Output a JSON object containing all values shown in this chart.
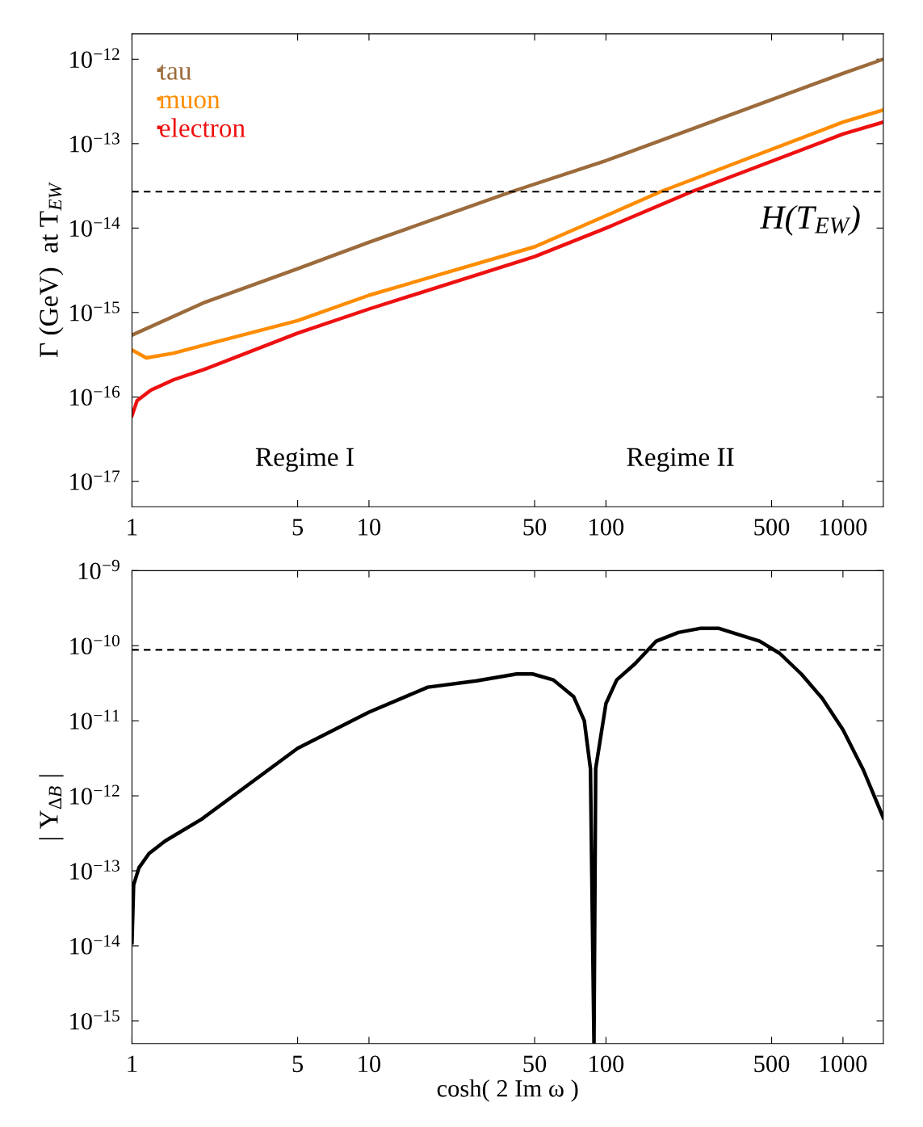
{
  "chart_data": [
    {
      "type": "line",
      "ylabel": "Γ (GeV)  at T$_{EW}$",
      "log": "xy",
      "grid": false,
      "legend": "top left",
      "tick_labels": true,
      "xlim": [
        1,
        1480
      ],
      "xticks": [
        1,
        5,
        10,
        50,
        100,
        500,
        1000
      ],
      "ylim": [
        5e-18,
        2e-12
      ],
      "yticks": [
        {
          "value": 1e-12,
          "label": "10$^{−12}$"
        },
        {
          "value": 1e-13,
          "label": "10$^{−13}$"
        },
        {
          "value": 1e-14,
          "label": "10$^{−14}$"
        },
        {
          "value": 1e-15,
          "label": "10$^{−15}$"
        },
        {
          "value": 1e-16,
          "label": "10$^{−16}$"
        },
        {
          "value": 1e-17,
          "label": "10$^{−17}$"
        }
      ],
      "series": [
        {
          "name": "tau",
          "color": "#9c6b3c",
          "x": [
            1,
            2,
            5,
            10,
            40,
            100,
            1000,
            1480
          ],
          "values": [
            5.4e-16,
            1.3e-15,
            3.3e-15,
            6.8e-15,
            2.7e-14,
            6.3e-14,
            6.8e-13,
            1e-12
          ]
        },
        {
          "name": "muon",
          "color": "#ff8c00",
          "x": [
            1,
            1.15,
            1.5,
            2,
            5,
            10,
            50,
            100,
            170,
            1000,
            1480
          ],
          "values": [
            3.6e-16,
            2.9e-16,
            3.3e-16,
            4.1e-16,
            8e-16,
            1.6e-15,
            6e-15,
            1.4e-14,
            2.7e-14,
            1.8e-13,
            2.5e-13
          ]
        },
        {
          "name": "electron",
          "color": "#ee1111",
          "x": [
            1,
            1.05,
            1.2,
            1.5,
            2,
            5,
            10,
            50,
            100,
            230,
            1000,
            1480
          ],
          "values": [
            6e-17,
            9e-17,
            1.2e-16,
            1.6e-16,
            2.1e-16,
            5.7e-16,
            1.1e-15,
            4.6e-15,
            1e-14,
            2.7e-14,
            1.3e-13,
            1.8e-13
          ]
        }
      ],
      "ref_lines": [
        {
          "axis": "y",
          "value": 2.7e-14,
          "label": "H(T$_{EW}$)",
          "color": "#000000",
          "line_style": "dashed"
        }
      ],
      "annotations": [
        "Regime I",
        "Regime II"
      ]
    },
    {
      "type": "line",
      "xlabel": "cosh( 2 Im ω )",
      "ylabel": "| Y$_{ΔB}$ |",
      "log": "xy",
      "grid": false,
      "legend": false,
      "xlim": [
        1,
        1480
      ],
      "xticks": [
        1,
        5,
        10,
        50,
        100,
        500,
        1000
      ],
      "ylim": [
        5e-16,
        1e-09
      ],
      "yticks": [
        {
          "value": 1e-09,
          "label": "10$^{−9}$"
        },
        {
          "value": 1e-10,
          "label": "10$^{−10}$"
        },
        {
          "value": 1e-11,
          "label": "10$^{−11}$"
        },
        {
          "value": 1e-12,
          "label": "10$^{−12}$"
        },
        {
          "value": 1e-13,
          "label": "10$^{−13}$"
        },
        {
          "value": 1e-14,
          "label": "10$^{−14}$"
        },
        {
          "value": 1e-15,
          "label": "10$^{−15}$"
        }
      ],
      "series": [
        {
          "color": "#000000",
          "x": [
            1,
            1.016,
            1.07,
            1.18,
            1.38,
            1.97,
            5,
            10,
            17.7,
            28.4,
            42,
            49,
            60,
            73,
            81,
            86,
            89,
            90.5,
            100,
            111,
            133,
            163,
            202,
            249,
            300,
            364,
            445,
            541,
            667,
            817,
            1000,
            1220,
            1480
          ],
          "values": [
            1.1e-14,
            6.5e-14,
            1.1e-13,
            1.7e-13,
            2.5e-13,
            4.9e-13,
            4.3e-12,
            1.3e-11,
            2.8e-11,
            3.4e-11,
            4.2e-11,
            4.2e-11,
            3.5e-11,
            2.1e-11,
            1e-11,
            2.3e-12,
            5e-16,
            2.3e-12,
            1.7e-11,
            3.5e-11,
            5.8e-11,
            1.15e-10,
            1.5e-10,
            1.7e-10,
            1.7e-10,
            1.4e-10,
            1.15e-10,
            7.9e-11,
            4.2e-11,
            2e-11,
            7.6e-12,
            2.2e-12,
            5.1e-13
          ]
        }
      ],
      "ref_lines": [
        {
          "axis": "y",
          "value": 8.8e-11,
          "color": "#000000",
          "line_style": "dashed"
        }
      ]
    }
  ]
}
